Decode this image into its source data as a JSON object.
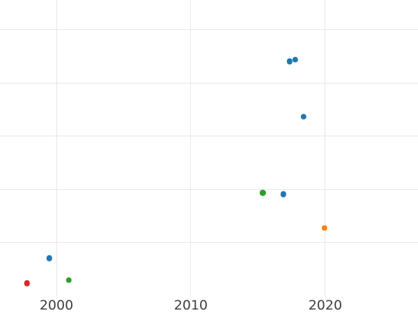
{
  "chart_data": {
    "type": "scatter",
    "title": "",
    "xlabel": "",
    "ylabel": "",
    "grid": true,
    "legend": false,
    "background": "#ffffff",
    "gridline_color": "#e6e6e6",
    "tick_label_color": "#3d3d3d",
    "marker_diameter_px": 8.5,
    "x_ticks": [
      {
        "label": "2000",
        "value": 2000
      },
      {
        "label": "2010",
        "value": 2010
      },
      {
        "label": "2020",
        "value": 2020
      }
    ],
    "xlim": [
      1995.8,
      2026.9
    ],
    "ylim": [
      -0.32,
      5.56
    ],
    "y_gridlines": [
      1,
      2,
      3,
      4,
      5
    ],
    "y_axis_note": "y-axis tick labels are cropped out of view; y values estimated in gridline units above the plot bottom",
    "x_gridlines_extend_to_y": 0,
    "series": [
      {
        "name": "blue",
        "color": "#1f77b4",
        "points": [
          {
            "x": 2017.36,
            "y": 4.41
          },
          {
            "x": 2017.77,
            "y": 4.44
          },
          {
            "x": 2018.39,
            "y": 3.37
          },
          {
            "x": 2016.89,
            "y": 1.91
          },
          {
            "x": 1999.46,
            "y": 0.71
          }
        ]
      },
      {
        "name": "orange",
        "color": "#ff7f0e",
        "points": [
          {
            "x": 2019.95,
            "y": 1.28
          }
        ]
      },
      {
        "name": "green",
        "color": "#2ca02c",
        "points": [
          {
            "x": 2015.36,
            "y": 1.94
          },
          {
            "x": 2000.93,
            "y": 0.3
          }
        ]
      },
      {
        "name": "red",
        "color": "#d62728",
        "points": [
          {
            "x": 1997.8,
            "y": 0.24
          }
        ]
      }
    ]
  }
}
